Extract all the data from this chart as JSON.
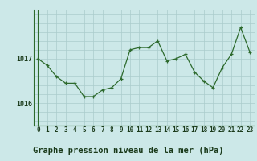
{
  "title": "Graphe pression niveau de la mer (hPa)",
  "x_values": [
    0,
    1,
    2,
    3,
    4,
    5,
    6,
    7,
    8,
    9,
    10,
    11,
    12,
    13,
    14,
    15,
    16,
    17,
    18,
    19,
    20,
    21,
    22,
    23
  ],
  "y_values": [
    1017.0,
    1016.85,
    1016.6,
    1016.45,
    1016.45,
    1016.15,
    1016.15,
    1016.3,
    1016.35,
    1016.55,
    1017.2,
    1017.25,
    1017.25,
    1017.4,
    1016.95,
    1017.0,
    1017.1,
    1016.7,
    1016.5,
    1016.35,
    1016.8,
    1017.1,
    1017.7,
    1017.15
  ],
  "line_color": "#2d6a2d",
  "marker_color": "#2d6a2d",
  "bg_color": "#cce8e8",
  "grid_color": "#aacccc",
  "axis_color": "#2d6a2d",
  "text_color": "#1a3a1a",
  "yticks": [
    1016,
    1017
  ],
  "ylim": [
    1015.5,
    1018.1
  ],
  "xlim": [
    -0.5,
    23.5
  ],
  "title_fontsize": 7.5,
  "tick_fontsize": 6.0
}
